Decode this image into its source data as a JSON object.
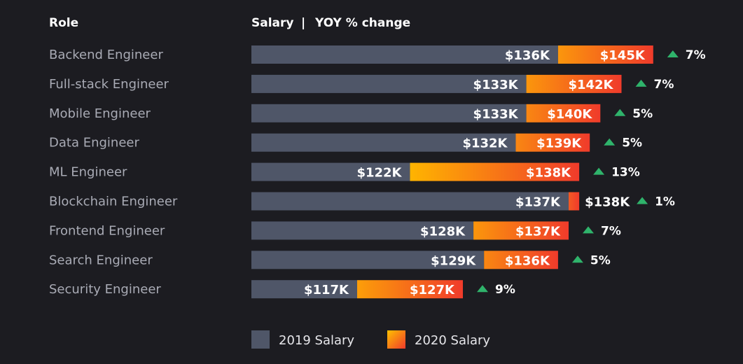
{
  "chart_data": {
    "type": "bar",
    "orientation": "horizontal",
    "stacked": true,
    "header_role": "Role",
    "header_salary": "Salary",
    "header_sep": "|",
    "header_yoy": "YOY % change",
    "categories": [
      "Backend Engineer",
      "Full-stack Engineer",
      "Mobile Engineer",
      "Data Engineer",
      "ML Engineer",
      "Blockchain Engineer",
      "Frontend Engineer",
      "Search Engineer",
      "Security Engineer"
    ],
    "series": [
      {
        "name": "2019 Salary",
        "values": [
          136,
          133,
          133,
          132,
          122,
          137,
          128,
          129,
          117
        ]
      },
      {
        "name": "2020 Salary",
        "values": [
          145,
          142,
          140,
          139,
          138,
          138,
          137,
          136,
          127
        ]
      }
    ],
    "value_labels_2019": [
      "$136K",
      "$133K",
      "$133K",
      "$132K",
      "$122K",
      "$137K",
      "$128K",
      "$129K",
      "$117K"
    ],
    "value_labels_2020": [
      "$145K",
      "$142K",
      "$140K",
      "$139K",
      "$138K",
      "$138K",
      "$137K",
      "$136K",
      "$127K"
    ],
    "yoy_change": [
      "7%",
      "7%",
      "5%",
      "5%",
      "13%",
      "1%",
      "7%",
      "5%",
      "9%"
    ],
    "legend": [
      "2019 Salary",
      "2020 Salary"
    ],
    "legend_position": "bottom",
    "axis_domain": [
      107,
      147
    ],
    "colors": {
      "background": "#1c1c21",
      "bar2019": "#4f5668",
      "bar2020_low": "#ffb400",
      "bar2020_high": "#f03b2b",
      "arrow": "#2fb36b"
    }
  }
}
